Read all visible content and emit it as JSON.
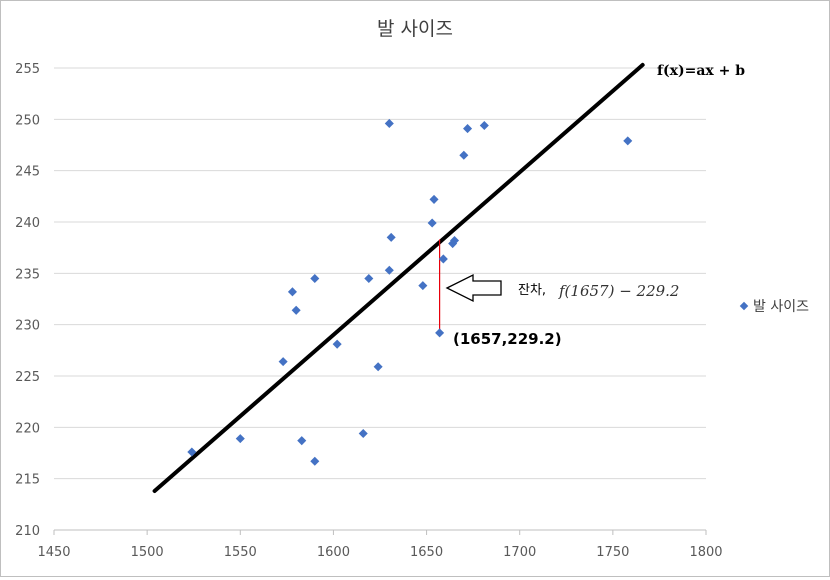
{
  "chart_data": {
    "type": "scatter",
    "title": "발 사이즈",
    "xlim": [
      1450,
      1800
    ],
    "ylim": [
      210,
      255
    ],
    "x_ticks": [
      "1450",
      "1500",
      "1550",
      "1600",
      "1650",
      "1700",
      "1750",
      "1800"
    ],
    "y_ticks": [
      "210",
      "215",
      "220",
      "225",
      "230",
      "235",
      "240",
      "245",
      "250",
      "255"
    ],
    "grid": "horizontal",
    "legend_position": "right",
    "series": [
      {
        "name": "발 사이즈",
        "color": "#4472C4",
        "marker": "diamond",
        "points": [
          [
            1524,
            217.6
          ],
          [
            1550,
            218.9
          ],
          [
            1573,
            226.4
          ],
          [
            1578,
            233.2
          ],
          [
            1580,
            231.4
          ],
          [
            1583,
            218.7
          ],
          [
            1590,
            234.5
          ],
          [
            1590,
            216.7
          ],
          [
            1602,
            228.1
          ],
          [
            1616,
            219.4
          ],
          [
            1619,
            234.5
          ],
          [
            1624,
            225.9
          ],
          [
            1630,
            235.3
          ],
          [
            1630,
            249.6
          ],
          [
            1631,
            238.5
          ],
          [
            1648,
            233.8
          ],
          [
            1653,
            239.9
          ],
          [
            1654,
            242.2
          ],
          [
            1657,
            229.2
          ],
          [
            1659,
            236.4
          ],
          [
            1664,
            237.9
          ],
          [
            1665,
            238.2
          ],
          [
            1670,
            246.5
          ],
          [
            1672,
            249.1
          ],
          [
            1681,
            249.4
          ],
          [
            1758,
            247.9
          ]
        ]
      }
    ],
    "fit_line": {
      "color": "#000000",
      "from": [
        1504,
        213.8
      ],
      "to": [
        1766,
        255.3
      ]
    },
    "annotations": {
      "fit_label": "f(x)=ax + b",
      "point_label": "(1657,229.2)",
      "residual_label": "잔차,",
      "residual_expression": "f(1657) − 229.2",
      "residual_point": [
        1657,
        229.2
      ],
      "residual_line_top": 238.3,
      "residual_color": "#e8000b"
    }
  }
}
